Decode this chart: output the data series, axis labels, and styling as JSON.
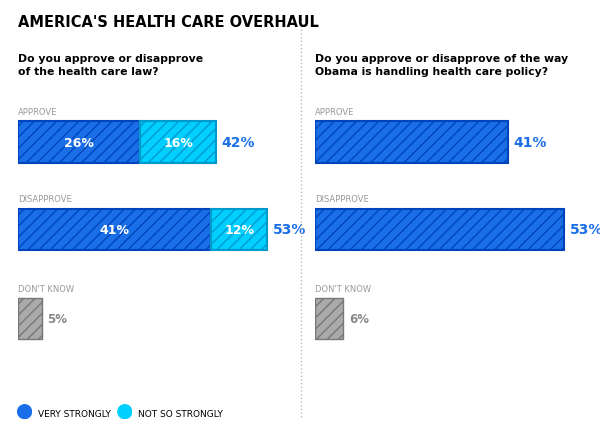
{
  "title": "AMERICA'S HEALTH CARE OVERHAUL",
  "left_question": "Do you approve or disapprove\nof the health care law?",
  "right_question": "Do you approve or disapprove of the way\nObama is handling health care policy?",
  "left_bars": [
    {
      "label": "APPROVE",
      "strongly": 26,
      "not_so": 16,
      "total": 42
    },
    {
      "label": "DISAPPROVE",
      "strongly": 41,
      "not_so": 12,
      "total": 53
    },
    {
      "label": "DON'T KNOW",
      "strongly": 5,
      "not_so": 0,
      "total": 5
    }
  ],
  "right_bars": [
    {
      "label": "APPROVE",
      "strongly": 41,
      "not_so": 0,
      "total": 41
    },
    {
      "label": "DISAPPROVE",
      "strongly": 53,
      "not_so": 0,
      "total": 53
    },
    {
      "label": "DON'T KNOW",
      "strongly": 6,
      "not_so": 0,
      "total": 6
    }
  ],
  "color_strongly": "#1A6FE8",
  "color_not_so": "#00CFFF",
  "color_dont_know": "#AAAAAA",
  "legend_strongly_color": "#1A6FE8",
  "legend_not_so_color": "#00CFFF",
  "legend_strongly_label": "VERY STRONGLY",
  "legend_not_so_label": "NOT SO STRONGLY",
  "background": "#FFFFFF"
}
